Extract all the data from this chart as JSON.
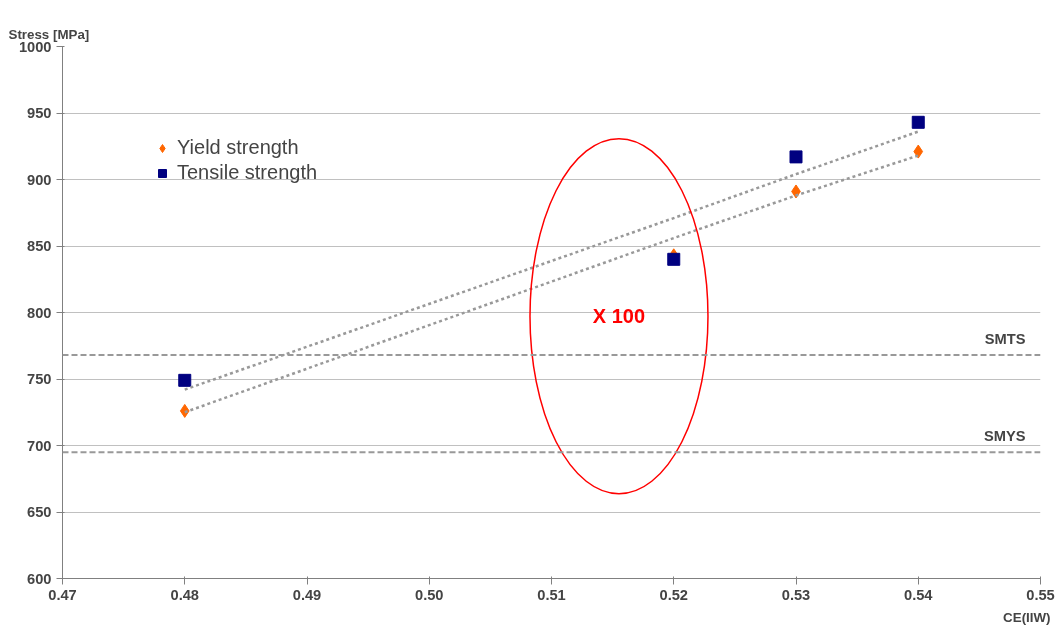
{
  "chart_data": {
    "type": "scatter",
    "xlabel": "CE(IIW)",
    "ylabel": "Stress [MPa]",
    "x": [
      0.48,
      0.52,
      0.53,
      0.54
    ],
    "series": [
      {
        "name": "Yield strength",
        "color": "#ff6600",
        "marker": "diamond",
        "values": [
          726,
          843,
          891,
          921
        ]
      },
      {
        "name": "Tensile strength",
        "color": "#000080",
        "marker": "square",
        "values": [
          749,
          840,
          917,
          943
        ]
      },
      {
        "type": "line",
        "color": "#999999",
        "line_style": "dotted",
        "values": [
          742,
          871,
          904,
          936
        ]
      },
      {
        "type": "line",
        "color": "#999999",
        "line_style": "dotted",
        "values": [
          725,
          856,
          888,
          918
        ]
      }
    ],
    "xlim": [
      0.47,
      0.55
    ],
    "xticks": [
      0.47,
      0.48,
      0.49,
      {
        "value": 0.5,
        "label": "0.50"
      },
      0.51,
      0.52,
      0.53,
      0.54,
      0.55
    ],
    "ylim": [
      600,
      1000
    ],
    "yticks": [
      600,
      650,
      700,
      750,
      800,
      850,
      900,
      950,
      1000
    ],
    "ref_lines": [
      {
        "axis": "y",
        "value": 768,
        "label": "SMTS",
        "color": "#999999",
        "line_style": "dashed"
      },
      {
        "axis": "y",
        "value": 695,
        "label": "SMYS",
        "color": "#999999",
        "line_style": "dashed"
      }
    ],
    "annotations": [
      "X 100"
    ],
    "grid": "y",
    "legend": "top left"
  }
}
